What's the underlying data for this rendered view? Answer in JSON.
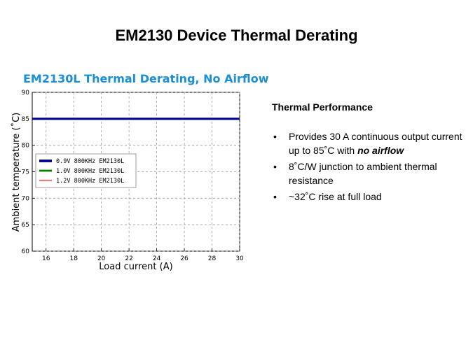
{
  "slide": {
    "title": "EM2130 Device Thermal Derating"
  },
  "panel": {
    "heading": "Thermal Performance",
    "bullet_char": "•",
    "bullets": [
      {
        "text": "Provides 30 A continuous  output current up to 85˚C with ",
        "emphasis": "no airflow"
      },
      {
        "text": "8˚C/W junction to ambient thermal resistance",
        "emphasis": ""
      },
      {
        "text": "~32˚C rise at full load",
        "emphasis": ""
      }
    ]
  },
  "chart_data": {
    "type": "line",
    "title": "EM2130L Thermal Derating, No Airflow",
    "xlabel": "Load current (A)",
    "ylabel": "Ambient temperature (˚C)",
    "xlim": [
      15,
      30
    ],
    "ylim": [
      60,
      90
    ],
    "xticks": [
      16,
      18,
      20,
      22,
      24,
      26,
      28,
      30
    ],
    "yticks": [
      60,
      65,
      70,
      75,
      80,
      85,
      90
    ],
    "grid": true,
    "legend_position": "center-left",
    "x": [
      15,
      30
    ],
    "series": [
      {
        "name": "0.9V 800KHz EM2130L",
        "values": [
          85,
          85
        ],
        "color": "#00008b"
      },
      {
        "name": "1.0V 800KHz EM2130L",
        "values": [
          85,
          85
        ],
        "color": "#008000"
      },
      {
        "name": "1.2V 800KHz EM2130L",
        "values": [
          85,
          85
        ],
        "color": "#e88080"
      }
    ]
  }
}
